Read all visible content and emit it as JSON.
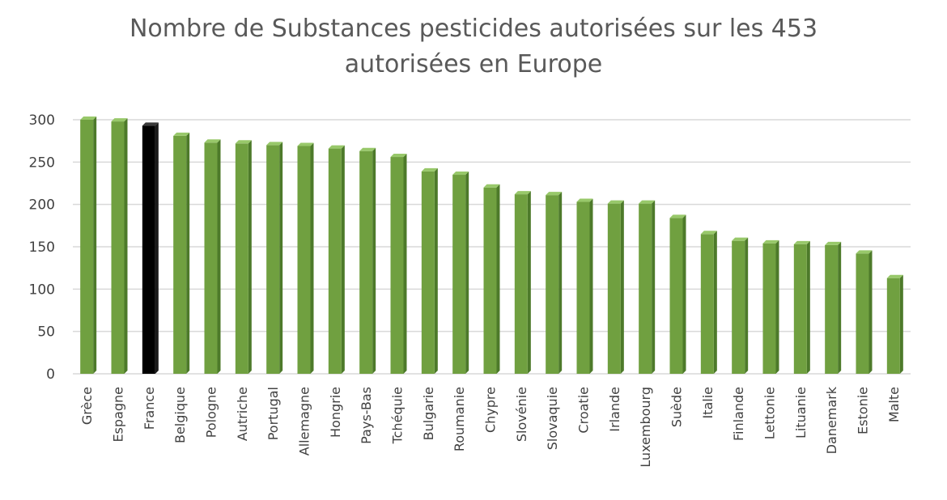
{
  "colors": {
    "bar": "#70a040",
    "bar_top": "#98c86a",
    "bar_side": "#4d7a2a",
    "highlight": "#000000",
    "highlight_top": "#3a3a3a",
    "highlight_side": "#1a1a1a",
    "grid": "#d9d9d9",
    "text": "#595959"
  },
  "chart_data": {
    "type": "bar",
    "title_lines": [
      "Nombre de Substances pesticides autorisées sur les 453",
      "autorisées en Europe"
    ],
    "xlabel": "",
    "ylabel": "",
    "ylim": [
      0,
      300
    ],
    "yticks": [
      0,
      50,
      100,
      150,
      200,
      250,
      300
    ],
    "grid": true,
    "legend": "none",
    "highlight_category": "France",
    "categories": [
      "Grèce",
      "Espagne",
      "France",
      "Belgique",
      "Pologne",
      "Autriche",
      "Portugal",
      "Allemagne",
      "Hongrie",
      "Pays-Bas",
      "Tchéquie",
      "Bulgarie",
      "Roumanie",
      "Chypre",
      "Slovénie",
      "Slovaquie",
      "Croatie",
      "Irlande",
      "Luxembourg",
      "Suède",
      "Italie",
      "Finlande",
      "Lettonie",
      "Lituanie",
      "Danemark",
      "Estonie",
      "Malte"
    ],
    "values": [
      300,
      298,
      293,
      281,
      273,
      272,
      270,
      269,
      266,
      263,
      256,
      239,
      235,
      220,
      212,
      211,
      203,
      201,
      201,
      184,
      165,
      157,
      154,
      153,
      152,
      142,
      113
    ]
  }
}
